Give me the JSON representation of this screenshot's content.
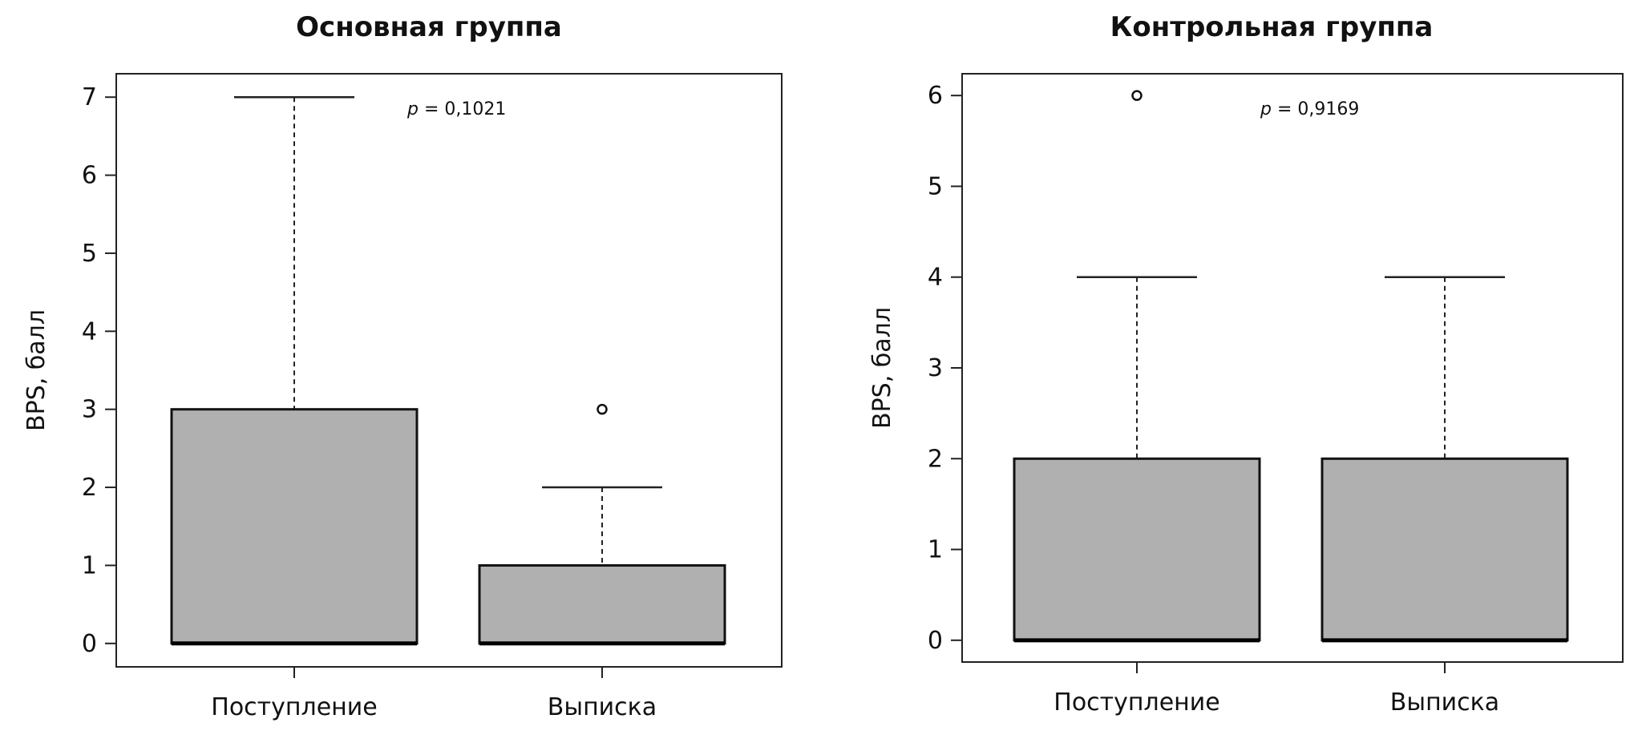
{
  "chart_data": [
    {
      "type": "box",
      "title": "Основная группа",
      "xlabel": "",
      "ylabel": "BPS, балл",
      "ylim": [
        -0.3,
        7.3
      ],
      "yticks": [
        0,
        1,
        2,
        3,
        4,
        5,
        6,
        7
      ],
      "categories": [
        "Поступление",
        "Выписка"
      ],
      "boxes": [
        {
          "category": "Поступление",
          "min": 0,
          "q1": 0,
          "median": 0,
          "q3": 3,
          "max": 7,
          "outliers": []
        },
        {
          "category": "Выписка",
          "min": 0,
          "q1": 0,
          "median": 0,
          "q3": 1,
          "max": 2,
          "outliers": [
            3
          ]
        }
      ],
      "annotation": {
        "p_symbol": "p",
        "p_value": "= 0,1021"
      },
      "box_fill": "#b0b0b0",
      "grid": false
    },
    {
      "type": "box",
      "title": "Контрольная группа",
      "xlabel": "",
      "ylabel": "BPS, балл",
      "ylim": [
        -0.24,
        6.24
      ],
      "yticks": [
        0,
        1,
        2,
        3,
        4,
        5,
        6
      ],
      "categories": [
        "Поступление",
        "Выписка"
      ],
      "boxes": [
        {
          "category": "Поступление",
          "min": 0,
          "q1": 0,
          "median": 0,
          "q3": 2,
          "max": 4,
          "outliers": [
            6
          ]
        },
        {
          "category": "Выписка",
          "min": 0,
          "q1": 0,
          "median": 0,
          "q3": 2,
          "max": 4,
          "outliers": []
        }
      ],
      "annotation": {
        "p_symbol": "p",
        "p_value": "= 0,9169"
      },
      "box_fill": "#b0b0b0",
      "grid": false
    }
  ]
}
